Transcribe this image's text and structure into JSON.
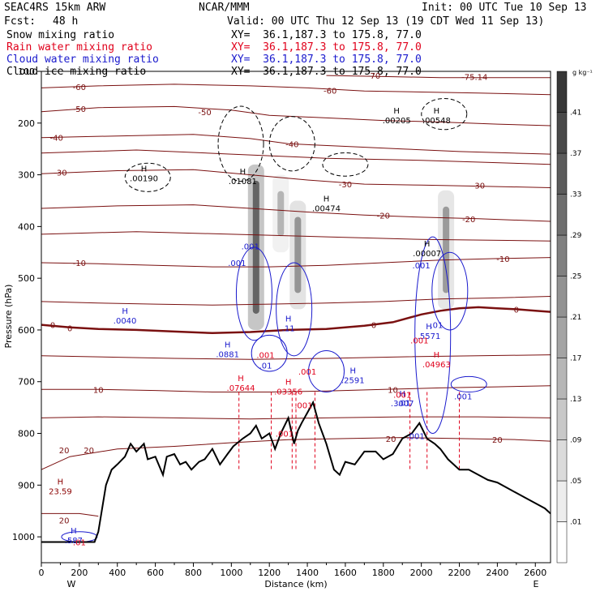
{
  "header": {
    "model": "SEAC4RS 15km ARW",
    "org": "NCAR/MMM",
    "init": "Init: 00 UTC Tue 10 Sep 13",
    "fcst_label": "Fcst:",
    "fcst_value": "48 h",
    "valid": "Valid: 00 UTC Thu 12 Sep 13 (19 CDT Wed 11 Sep 13)",
    "fields": [
      {
        "name": "Snow mixing ratio",
        "xy": "XY=  36.1,187.3 to 175.8, 77.0",
        "color": "#000000"
      },
      {
        "name": "Rain water mixing ratio",
        "xy": "XY=  36.1,187.3 to 175.8, 77.0",
        "color": "#e0001b"
      },
      {
        "name": "Cloud water mixing ratio",
        "xy": "XY=  36.1,187.3 to 175.8, 77.0",
        "color": "#1a1acd"
      },
      {
        "name": "Cloud ice mixing ratio",
        "xy": "XY=  36.1,187.3 to 175.8, 77.0",
        "color": "#000000"
      }
    ]
  },
  "chart_data": {
    "type": "cross-section",
    "xlabel": "Distance (km)",
    "ylabel": "Pressure (hPa)",
    "xlim": [
      0,
      2680
    ],
    "ylim": [
      1050,
      100
    ],
    "x_ticks": [
      0,
      200,
      400,
      600,
      800,
      1000,
      1200,
      1400,
      1600,
      1800,
      2000,
      2200,
      2400,
      2600
    ],
    "y_ticks": [
      100,
      200,
      300,
      400,
      500,
      600,
      700,
      800,
      900,
      1000
    ],
    "endpoints": {
      "left": "W",
      "right": "E"
    },
    "colorbar": {
      "unit": "g kg⁻¹",
      "levels": [
        0.01,
        0.05,
        0.09,
        0.13,
        0.17,
        0.21,
        0.25,
        0.29,
        0.33,
        0.37,
        0.41
      ],
      "labels": [
        ".01",
        ".05",
        ".09",
        ".13",
        ".17",
        ".21",
        ".25",
        ".29",
        ".33",
        ".37",
        ".41"
      ]
    },
    "terrain_pressure": [
      [
        0,
        1010
      ],
      [
        150,
        1010
      ],
      [
        280,
        1010
      ],
      [
        300,
        990
      ],
      [
        340,
        900
      ],
      [
        370,
        870
      ],
      [
        400,
        860
      ],
      [
        440,
        845
      ],
      [
        470,
        820
      ],
      [
        500,
        835
      ],
      [
        540,
        820
      ],
      [
        560,
        850
      ],
      [
        600,
        845
      ],
      [
        640,
        880
      ],
      [
        660,
        845
      ],
      [
        700,
        840
      ],
      [
        730,
        860
      ],
      [
        760,
        855
      ],
      [
        790,
        870
      ],
      [
        830,
        855
      ],
      [
        860,
        850
      ],
      [
        900,
        830
      ],
      [
        940,
        860
      ],
      [
        980,
        840
      ],
      [
        1010,
        825
      ],
      [
        1060,
        810
      ],
      [
        1100,
        800
      ],
      [
        1130,
        785
      ],
      [
        1160,
        810
      ],
      [
        1200,
        800
      ],
      [
        1230,
        830
      ],
      [
        1260,
        800
      ],
      [
        1300,
        770
      ],
      [
        1330,
        820
      ],
      [
        1350,
        795
      ],
      [
        1370,
        780
      ],
      [
        1400,
        760
      ],
      [
        1430,
        740
      ],
      [
        1460,
        780
      ],
      [
        1500,
        820
      ],
      [
        1540,
        870
      ],
      [
        1570,
        880
      ],
      [
        1600,
        855
      ],
      [
        1650,
        860
      ],
      [
        1700,
        835
      ],
      [
        1760,
        835
      ],
      [
        1800,
        850
      ],
      [
        1850,
        840
      ],
      [
        1900,
        810
      ],
      [
        1950,
        800
      ],
      [
        1990,
        780
      ],
      [
        2030,
        810
      ],
      [
        2070,
        820
      ],
      [
        2100,
        830
      ],
      [
        2140,
        850
      ],
      [
        2200,
        870
      ],
      [
        2250,
        870
      ],
      [
        2300,
        880
      ],
      [
        2350,
        890
      ],
      [
        2400,
        895
      ],
      [
        2450,
        905
      ],
      [
        2500,
        915
      ],
      [
        2550,
        925
      ],
      [
        2600,
        935
      ],
      [
        2650,
        945
      ],
      [
        2680,
        955
      ]
    ],
    "zero_isotherm": [
      [
        0,
        590
      ],
      [
        150,
        595
      ],
      [
        300,
        598
      ],
      [
        500,
        600
      ],
      [
        700,
        603
      ],
      [
        900,
        606
      ],
      [
        1100,
        604
      ],
      [
        1300,
        600
      ],
      [
        1500,
        598
      ],
      [
        1700,
        592
      ],
      [
        1850,
        585
      ],
      [
        2000,
        570
      ],
      [
        2100,
        563
      ],
      [
        2200,
        558
      ],
      [
        2300,
        556
      ],
      [
        2400,
        558
      ],
      [
        2500,
        560
      ],
      [
        2600,
        563
      ],
      [
        2680,
        565
      ]
    ],
    "isotherms": [
      {
        "value": -70,
        "points": [
          [
            1500,
            108
          ],
          [
            1800,
            110
          ],
          [
            2100,
            112
          ],
          [
            2400,
            112
          ],
          [
            2680,
            112
          ]
        ]
      },
      {
        "value": -60,
        "points": [
          [
            0,
            132
          ],
          [
            300,
            128
          ],
          [
            700,
            125
          ],
          [
            1100,
            128
          ],
          [
            1400,
            132
          ],
          [
            1700,
            138
          ],
          [
            2000,
            140
          ],
          [
            2300,
            142
          ],
          [
            2680,
            145
          ]
        ]
      },
      {
        "value": -50,
        "points": [
          [
            0,
            178
          ],
          [
            300,
            170
          ],
          [
            700,
            168
          ],
          [
            1000,
            175
          ],
          [
            1200,
            185
          ],
          [
            1500,
            190
          ],
          [
            1800,
            195
          ],
          [
            2100,
            198
          ],
          [
            2400,
            202
          ],
          [
            2680,
            205
          ]
        ]
      },
      {
        "value": -40,
        "points": [
          [
            0,
            228
          ],
          [
            400,
            225
          ],
          [
            800,
            222
          ],
          [
            1100,
            230
          ],
          [
            1300,
            240
          ],
          [
            1600,
            245
          ],
          [
            1900,
            250
          ],
          [
            2200,
            255
          ],
          [
            2680,
            260
          ]
        ]
      },
      {
        "value": -30,
        "points": [
          [
            0,
            298
          ],
          [
            400,
            292
          ],
          [
            800,
            290
          ],
          [
            1100,
            300
          ],
          [
            1400,
            310
          ],
          [
            1700,
            318
          ],
          [
            2000,
            320
          ],
          [
            2300,
            322
          ],
          [
            2680,
            325
          ]
        ]
      },
      {
        "value": -20,
        "points": [
          [
            0,
            365
          ],
          [
            400,
            360
          ],
          [
            800,
            358
          ],
          [
            1100,
            365
          ],
          [
            1400,
            372
          ],
          [
            1700,
            378
          ],
          [
            2000,
            382
          ],
          [
            2300,
            385
          ],
          [
            2680,
            390
          ]
        ]
      },
      {
        "value": -10,
        "points": [
          [
            0,
            470
          ],
          [
            300,
            472
          ],
          [
            600,
            475
          ],
          [
            900,
            478
          ],
          [
            1200,
            478
          ],
          [
            1500,
            475
          ],
          [
            1800,
            470
          ],
          [
            2100,
            465
          ],
          [
            2400,
            462
          ],
          [
            2680,
            460
          ]
        ]
      },
      {
        "value": 10,
        "points": [
          [
            0,
            715
          ],
          [
            300,
            715
          ],
          [
            600,
            717
          ],
          [
            900,
            720
          ],
          [
            1200,
            720
          ],
          [
            1500,
            718
          ],
          [
            1800,
            715
          ],
          [
            2100,
            712
          ],
          [
            2400,
            710
          ],
          [
            2680,
            708
          ]
        ]
      },
      {
        "value": 20,
        "points": [
          [
            0,
            870
          ],
          [
            150,
            845
          ],
          [
            400,
            830
          ],
          [
            700,
            825
          ],
          [
            1000,
            818
          ],
          [
            1300,
            812
          ],
          [
            1600,
            810
          ],
          [
            1900,
            808
          ],
          [
            2200,
            810
          ],
          [
            2500,
            812
          ],
          [
            2680,
            815
          ]
        ]
      }
    ],
    "extra_isotherms": [
      [
        [
          0,
          258
        ],
        [
          500,
          252
        ],
        [
          1000,
          260
        ],
        [
          1500,
          268
        ],
        [
          2000,
          272
        ],
        [
          2680,
          280
        ]
      ],
      [
        [
          0,
          415
        ],
        [
          500,
          410
        ],
        [
          1000,
          415
        ],
        [
          1500,
          420
        ],
        [
          2000,
          425
        ],
        [
          2680,
          428
        ]
      ],
      [
        [
          0,
          545
        ],
        [
          300,
          548
        ],
        [
          600,
          550
        ],
        [
          900,
          552
        ],
        [
          1200,
          550
        ],
        [
          1500,
          548
        ],
        [
          1800,
          545
        ],
        [
          2100,
          540
        ],
        [
          2400,
          538
        ],
        [
          2680,
          535
        ]
      ],
      [
        [
          0,
          650
        ],
        [
          300,
          652
        ],
        [
          700,
          655
        ],
        [
          1100,
          657
        ],
        [
          1500,
          655
        ],
        [
          1900,
          652
        ],
        [
          2300,
          650
        ],
        [
          2680,
          648
        ]
      ],
      [
        [
          0,
          770
        ],
        [
          300,
          768
        ],
        [
          700,
          770
        ],
        [
          1100,
          772
        ],
        [
          1500,
          770
        ],
        [
          1900,
          768
        ],
        [
          2300,
          768
        ],
        [
          2680,
          770
        ]
      ],
      [
        [
          0,
          955
        ],
        [
          200,
          955
        ],
        [
          300,
          960
        ]
      ]
    ],
    "isotherm_labels": [
      {
        "text": "-70",
        "x": 1750,
        "p": 108
      },
      {
        "text": "-75.14",
        "x": 2280,
        "p": 110
      },
      {
        "text": "-60",
        "x": 200,
        "p": 130
      },
      {
        "text": "-60",
        "x": 1520,
        "p": 137
      },
      {
        "text": "-50",
        "x": 200,
        "p": 172
      },
      {
        "text": "-50",
        "x": 860,
        "p": 178
      },
      {
        "text": "-40",
        "x": 80,
        "p": 228
      },
      {
        "text": "-40",
        "x": 1320,
        "p": 240
      },
      {
        "text": "-30",
        "x": 100,
        "p": 295
      },
      {
        "text": "-30",
        "x": 1600,
        "p": 318
      },
      {
        "text": "-30",
        "x": 2300,
        "p": 320
      },
      {
        "text": "-20",
        "x": 1800,
        "p": 378
      },
      {
        "text": "-20",
        "x": 2250,
        "p": 385
      },
      {
        "text": "-10",
        "x": 200,
        "p": 470
      },
      {
        "text": "-10",
        "x": 2430,
        "p": 462
      },
      {
        "text": "0",
        "x": 60,
        "p": 590
      },
      {
        "text": "0",
        "x": 150,
        "p": 596
      },
      {
        "text": "0",
        "x": 1750,
        "p": 590
      },
      {
        "text": "0",
        "x": 2500,
        "p": 560
      },
      {
        "text": "10",
        "x": 300,
        "p": 715
      },
      {
        "text": "10",
        "x": 1850,
        "p": 715
      },
      {
        "text": "20",
        "x": 120,
        "p": 832
      },
      {
        "text": "20",
        "x": 250,
        "p": 832
      },
      {
        "text": "20",
        "x": 1840,
        "p": 810
      },
      {
        "text": "20",
        "x": 2400,
        "p": 812
      },
      {
        "text": "20",
        "x": 120,
        "p": 968
      }
    ],
    "extrema_labels": [
      {
        "h": "H",
        "value": ".00190",
        "x": 540,
        "p": 300,
        "color": "#000000"
      },
      {
        "h": "H",
        "value": ".01081",
        "x": 1060,
        "p": 305,
        "color": "#000000"
      },
      {
        "h": "H",
        "value": ".00474",
        "x": 1500,
        "p": 358,
        "color": "#000000"
      },
      {
        "h": "H",
        "value": ".00205",
        "x": 1870,
        "p": 188,
        "color": "#000000"
      },
      {
        "h": "H",
        "value": ".00548",
        "x": 2080,
        "p": 188,
        "color": "#000000"
      },
      {
        "h": "H",
        "value": ".00007",
        "x": 2030,
        "p": 445,
        "color": "#000000"
      },
      {
        "h": "H",
        "value": ".0040",
        "x": 440,
        "p": 575,
        "color": "#1a1acd"
      },
      {
        "h": "H",
        "value": ".0881",
        "x": 980,
        "p": 640,
        "color": "#1a1acd"
      },
      {
        "h": "H",
        "value": ".11",
        "x": 1300,
        "p": 590,
        "color": "#1a1acd"
      },
      {
        "h": "H",
        "value": ".2591",
        "x": 1640,
        "p": 690,
        "color": "#1a1acd"
      },
      {
        "h": "H",
        "value": ".3007",
        "x": 1900,
        "p": 735,
        "color": "#1a1acd"
      },
      {
        "h": "H",
        "value": ".5571",
        "x": 2040,
        "p": 605,
        "color": "#1a1acd"
      },
      {
        "h": "H",
        "value": ".07644",
        "x": 1050,
        "p": 705,
        "color": "#e0001b"
      },
      {
        "h": "H",
        "value": ".03356",
        "x": 1300,
        "p": 712,
        "color": "#e0001b"
      },
      {
        "h": "H",
        "value": ".04963",
        "x": 2080,
        "p": 660,
        "color": "#e0001b"
      },
      {
        "h": "H",
        "value": "23.59",
        "x": 100,
        "p": 905,
        "color": "#8b0000"
      },
      {
        "h": "H",
        "value": ".587",
        "x": 170,
        "p": 1000,
        "color": "#1a1acd"
      }
    ],
    "misc_labels": [
      {
        "text": ".001",
        "x": 1100,
        "p": 438,
        "color": "#1a1acd"
      },
      {
        "text": ".001",
        "x": 1030,
        "p": 470,
        "color": "#1a1acd"
      },
      {
        "text": ".001",
        "x": 2000,
        "p": 475,
        "color": "#1a1acd"
      },
      {
        "text": ".001",
        "x": 1180,
        "p": 648,
        "color": "#e0001b"
      },
      {
        "text": ".001",
        "x": 1400,
        "p": 680,
        "color": "#e0001b"
      },
      {
        "text": ".001",
        "x": 1380,
        "p": 745,
        "color": "#e0001b"
      },
      {
        "text": ".001",
        "x": 1280,
        "p": 800,
        "color": "#e0001b"
      },
      {
        "text": ".001",
        "x": 2220,
        "p": 728,
        "color": "#1a1acd"
      },
      {
        "text": ".001",
        "x": 1970,
        "p": 805,
        "color": "#1a1acd"
      },
      {
        "text": ".001",
        "x": 1900,
        "p": 725,
        "color": "#e0001b"
      },
      {
        "text": ".001",
        "x": 1990,
        "p": 620,
        "color": "#e0001b"
      },
      {
        "text": ".01",
        "x": 1180,
        "p": 668,
        "color": "#1a1acd"
      },
      {
        "text": ".01",
        "x": 1910,
        "p": 740,
        "color": "#1a1acd"
      },
      {
        "text": ".01",
        "x": 2080,
        "p": 590,
        "color": "#1a1acd"
      },
      {
        "text": ".01",
        "x": 200,
        "p": 1010,
        "color": "#e0001b"
      }
    ],
    "snow_columns": [
      {
        "x": 1130,
        "p_top": 280,
        "p_bot": 600,
        "max": 0.41
      },
      {
        "x": 1350,
        "p_top": 350,
        "p_bot": 560,
        "max": 0.2
      },
      {
        "x": 2130,
        "p_top": 330,
        "p_bot": 560,
        "max": 0.18
      },
      {
        "x": 1260,
        "p_top": 300,
        "p_bot": 450,
        "max": 0.1
      }
    ],
    "rain_streaks": [
      1040,
      1210,
      1320,
      1340,
      1440,
      1940,
      2030,
      2200
    ]
  }
}
